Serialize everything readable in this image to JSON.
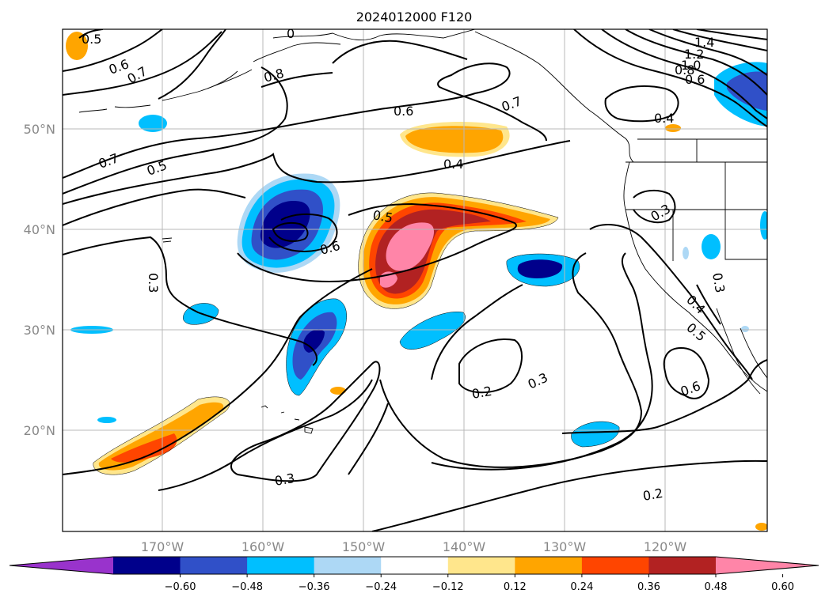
{
  "title": "2024012000 F120",
  "lat_labels": [
    "50°N",
    "40°N",
    "30°N",
    "20°N"
  ],
  "lon_labels": [
    "170°W",
    "160°W",
    "150°W",
    "140°W",
    "130°W",
    "120°W"
  ],
  "colorbar": {
    "colors": [
      "#9933cc",
      "#00008b",
      "#3050c8",
      "#00bfff",
      "#add8f5",
      "#ffffff",
      "#ffe68c",
      "#ffa500",
      "#ff4500",
      "#b22222",
      "#ff85a8"
    ],
    "tick_labels": [
      "−0.60",
      "−0.48",
      "−0.36",
      "−0.24",
      "−0.12",
      "0.12",
      "0.24",
      "0.36",
      "0.48",
      "0.60"
    ]
  },
  "contour_labels": [
    "0.5",
    "0.6",
    "0.7",
    "0.8",
    "0.7",
    "0.5",
    "0.3",
    "0.6",
    "0.5",
    "0.6",
    "0.7",
    "0.4",
    "1.4",
    "1.2",
    "1.0",
    "0.8",
    "0.6",
    "0.4",
    "0.3",
    "0.3",
    "0.4",
    "0.5",
    "0.6",
    "0.3",
    "0.2",
    "0.3",
    "0.2",
    "0"
  ]
}
